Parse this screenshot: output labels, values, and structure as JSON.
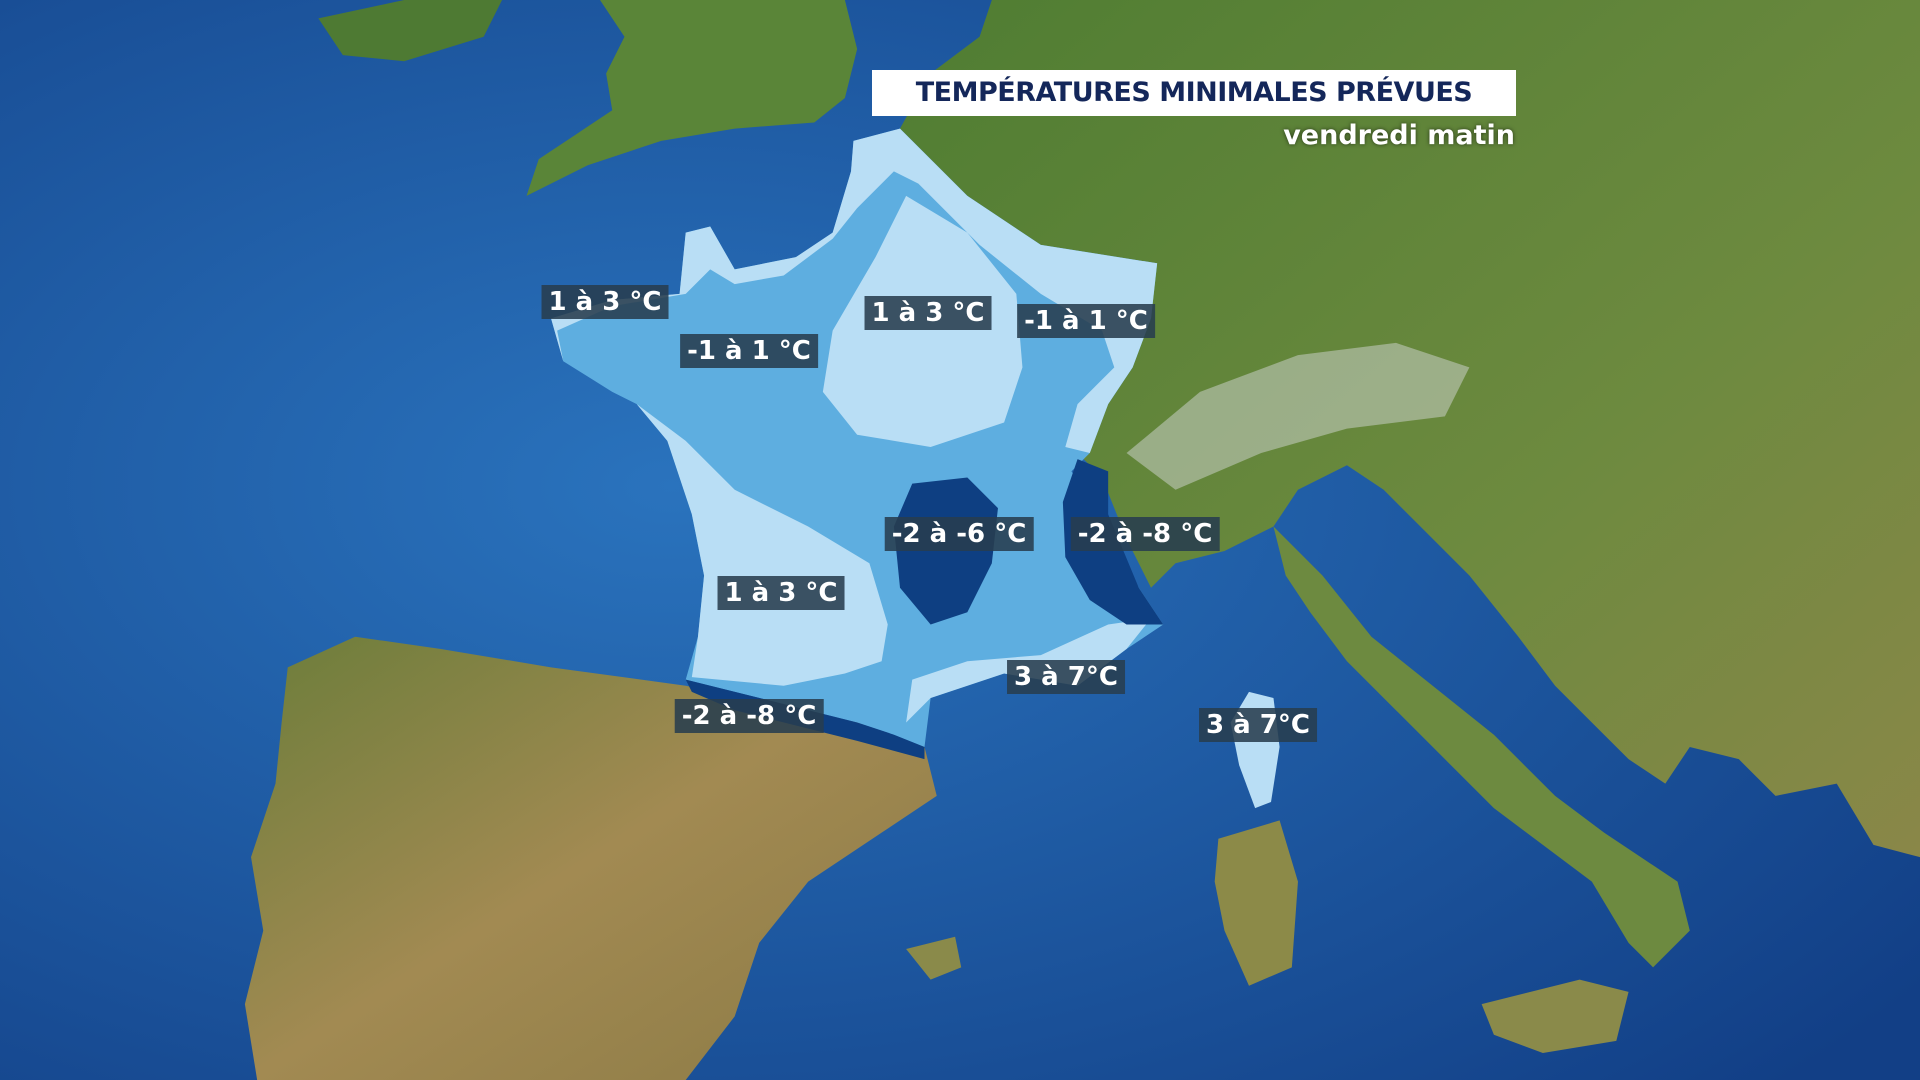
{
  "header": {
    "title": "TEMPÉRATURES MINIMALES PRÉVUES",
    "subtitle": "vendredi matin"
  },
  "labels": [
    "1 à 3 °C",
    "-1 à 1 °C",
    "1 à 3 °C",
    "-1 à 1 °C",
    "-2 à -6 °C",
    "-2 à -8 °C",
    "1 à 3 °C",
    "3 à 7°C",
    "-2 à -8 °C",
    "3 à 7°C"
  ]
}
